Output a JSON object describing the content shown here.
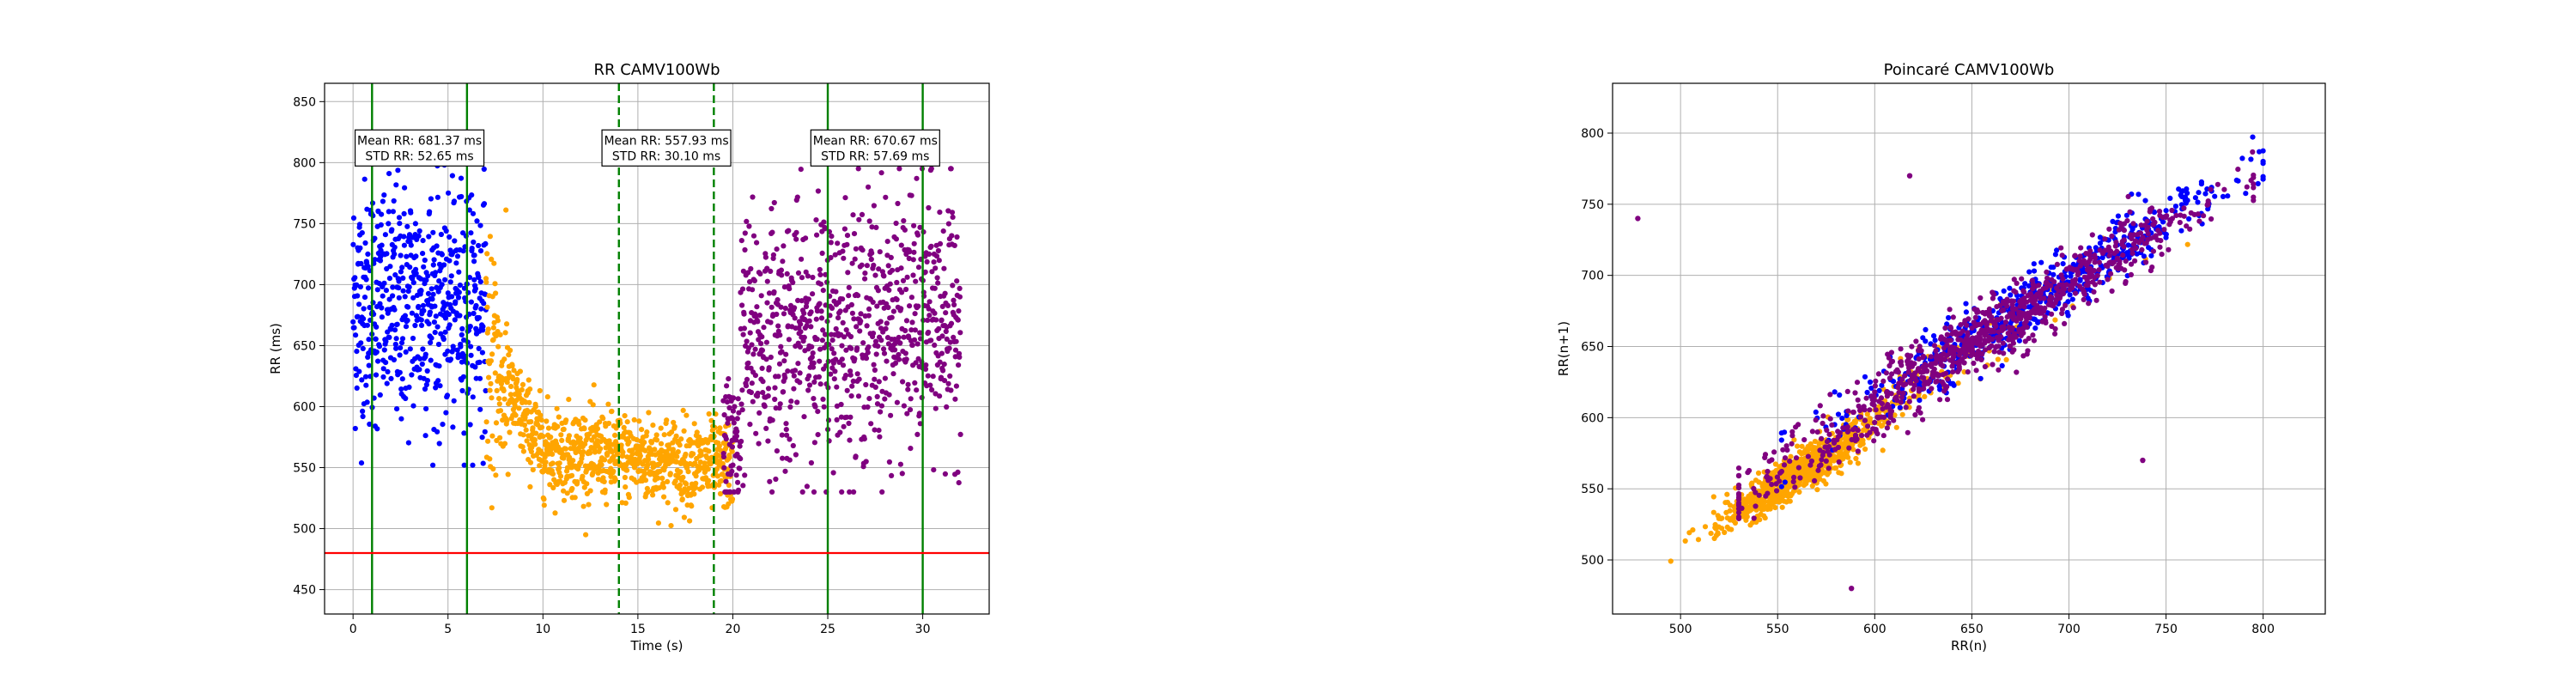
{
  "chart_data": [
    {
      "type": "scatter",
      "title": "RR CAMV100Wb",
      "xlabel": "Time (s)",
      "ylabel": "RR (ms)",
      "xlim": [
        -1.5,
        33.5
      ],
      "ylim": [
        430,
        865
      ],
      "xticks": [
        0,
        5,
        10,
        15,
        20,
        25,
        30
      ],
      "yticks": [
        450,
        500,
        550,
        600,
        650,
        700,
        750,
        800,
        850
      ],
      "grid": true,
      "colors": {
        "segment1": "#0000ff",
        "segment2": "#ffa500",
        "segment3": "#800080",
        "window_solid": "#008000",
        "window_dashed": "#008000",
        "threshold": "#ff0000"
      },
      "series": [
        {
          "segment": 1,
          "color": "#0000ff",
          "x_range": [
            0,
            7
          ],
          "mean": 681.37,
          "std": 52.65
        },
        {
          "segment": 2,
          "color": "#ffa500",
          "x_range": [
            7,
            20
          ],
          "mean": 560,
          "std": 30
        },
        {
          "segment": 3,
          "color": "#800080",
          "x_range": [
            19.5,
            32
          ],
          "mean": 670.67,
          "std": 57.69
        }
      ],
      "vertical_lines": [
        {
          "x": 1,
          "style": "solid"
        },
        {
          "x": 6,
          "style": "solid"
        },
        {
          "x": 14,
          "style": "dashed"
        },
        {
          "x": 19,
          "style": "dashed"
        },
        {
          "x": 25,
          "style": "solid"
        },
        {
          "x": 30,
          "style": "solid"
        }
      ],
      "threshold_line": {
        "y": 480
      },
      "annotations": [
        {
          "x": 3.5,
          "y": 812,
          "lines": [
            "Mean RR: 681.37 ms",
            "STD RR: 52.65 ms"
          ]
        },
        {
          "x": 16.5,
          "y": 812,
          "lines": [
            "Mean RR: 557.93 ms",
            "STD RR: 30.10 ms"
          ]
        },
        {
          "x": 27.5,
          "y": 812,
          "lines": [
            "Mean RR: 670.67 ms",
            "STD RR: 57.69 ms"
          ]
        }
      ]
    },
    {
      "type": "scatter",
      "title": "Poincaré CAMV100Wb",
      "xlabel": "RR(n)",
      "ylabel": "RR(n+1)",
      "xlim": [
        465,
        832
      ],
      "ylim": [
        462,
        835
      ],
      "xticks": [
        500,
        550,
        600,
        650,
        700,
        750,
        800
      ],
      "yticks": [
        500,
        550,
        600,
        650,
        700,
        750,
        800
      ],
      "grid": true,
      "series": [
        {
          "color": "#ffa500",
          "center": 560,
          "spread": 30
        },
        {
          "color": "#0000ff",
          "center": 680,
          "spread": 55
        },
        {
          "color": "#800080",
          "center": 670,
          "spread": 57
        }
      ],
      "outliers": [
        {
          "x": 478,
          "y": 740
        },
        {
          "x": 618,
          "y": 770
        },
        {
          "x": 588,
          "y": 480
        },
        {
          "x": 738,
          "y": 570
        }
      ]
    }
  ]
}
